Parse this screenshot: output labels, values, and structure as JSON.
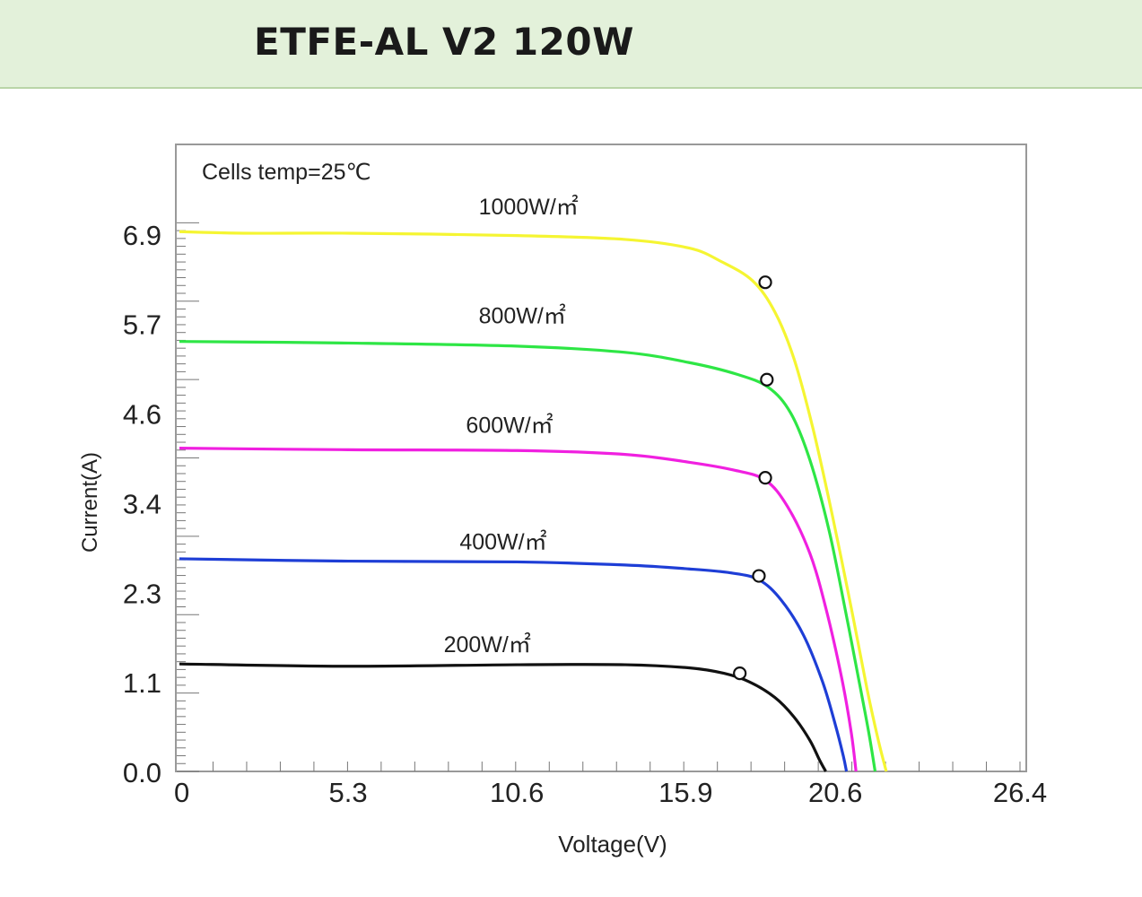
{
  "header": {
    "title": "ETFE-AL V2 120W"
  },
  "chart_data": {
    "type": "line",
    "annotation": "Cells temp=25℃",
    "xlabel": "Voltage(V)",
    "ylabel": "Current(A)",
    "xlim": [
      0,
      26.4
    ],
    "ylim": [
      0,
      8.05
    ],
    "x_ticks": [
      "0",
      "5.3",
      "10.6",
      "15.9",
      "20.6",
      "26.4"
    ],
    "x_tick_values": [
      0,
      5.3,
      10.6,
      15.9,
      20.6,
      26.4
    ],
    "y_ticks": [
      "0.0",
      "1.1",
      "2.3",
      "3.4",
      "4.6",
      "5.7",
      "6.9"
    ],
    "y_tick_values": [
      0.0,
      1.15,
      2.3,
      3.45,
      4.6,
      5.75,
      6.9
    ],
    "grid": false,
    "series": [
      {
        "name": "1000W/㎡",
        "color": "#f5f532",
        "label_at": [
          9.4,
          7.15
        ],
        "points": [
          [
            0,
            6.93
          ],
          [
            2,
            6.91
          ],
          [
            5.3,
            6.91
          ],
          [
            10.6,
            6.88
          ],
          [
            14,
            6.83
          ],
          [
            16,
            6.72
          ],
          [
            17,
            6.55
          ],
          [
            18,
            6.3
          ],
          [
            18.7,
            5.9
          ],
          [
            19.3,
            5.3
          ],
          [
            19.9,
            4.4
          ],
          [
            20.5,
            3.3
          ],
          [
            21.1,
            2.1
          ],
          [
            21.6,
            1.05
          ],
          [
            21.95,
            0.4
          ],
          [
            22.2,
            0
          ]
        ],
        "mpp": [
          18.4,
          6.28
        ]
      },
      {
        "name": "800W/㎡",
        "color": "#2ee645",
        "label_at": [
          9.4,
          5.75
        ],
        "points": [
          [
            0,
            5.52
          ],
          [
            5.3,
            5.5
          ],
          [
            10.6,
            5.46
          ],
          [
            14,
            5.38
          ],
          [
            16,
            5.25
          ],
          [
            17.5,
            5.1
          ],
          [
            18.5,
            4.93
          ],
          [
            19.2,
            4.6
          ],
          [
            19.8,
            4.0
          ],
          [
            20.4,
            3.1
          ],
          [
            20.9,
            2.1
          ],
          [
            21.35,
            1.15
          ],
          [
            21.65,
            0.5
          ],
          [
            21.85,
            0
          ]
        ],
        "mpp": [
          18.45,
          5.03
        ]
      },
      {
        "name": "600W/㎡",
        "color": "#f020e0",
        "label_at": [
          9.0,
          4.35
        ],
        "points": [
          [
            0,
            4.15
          ],
          [
            5.3,
            4.13
          ],
          [
            10.6,
            4.12
          ],
          [
            14,
            4.07
          ],
          [
            16,
            3.97
          ],
          [
            17.4,
            3.87
          ],
          [
            18.4,
            3.74
          ],
          [
            19.1,
            3.4
          ],
          [
            19.8,
            2.8
          ],
          [
            20.3,
            2.1
          ],
          [
            20.8,
            1.2
          ],
          [
            21.1,
            0.5
          ],
          [
            21.25,
            0
          ]
        ],
        "mpp": [
          18.4,
          3.77
        ]
      },
      {
        "name": "400W/㎡",
        "color": "#1e3ed6",
        "label_at": [
          8.8,
          2.85
        ],
        "points": [
          [
            0,
            2.73
          ],
          [
            5.3,
            2.7
          ],
          [
            10.6,
            2.69
          ],
          [
            14,
            2.65
          ],
          [
            16,
            2.6
          ],
          [
            17.3,
            2.55
          ],
          [
            18.2,
            2.46
          ],
          [
            18.9,
            2.2
          ],
          [
            19.6,
            1.75
          ],
          [
            20.2,
            1.15
          ],
          [
            20.6,
            0.6
          ],
          [
            20.85,
            0.2
          ],
          [
            20.95,
            0
          ]
        ],
        "mpp": [
          18.2,
          2.51
        ]
      },
      {
        "name": "200W/㎡",
        "color": "#111111",
        "label_at": [
          8.3,
          1.53
        ],
        "points": [
          [
            0,
            1.38
          ],
          [
            5.3,
            1.35
          ],
          [
            10.6,
            1.37
          ],
          [
            14,
            1.37
          ],
          [
            16,
            1.33
          ],
          [
            17.1,
            1.26
          ],
          [
            17.9,
            1.15
          ],
          [
            18.7,
            0.95
          ],
          [
            19.3,
            0.7
          ],
          [
            19.8,
            0.4
          ],
          [
            20.1,
            0.15
          ],
          [
            20.3,
            0
          ]
        ],
        "mpp": [
          17.6,
          1.26
        ]
      }
    ]
  }
}
